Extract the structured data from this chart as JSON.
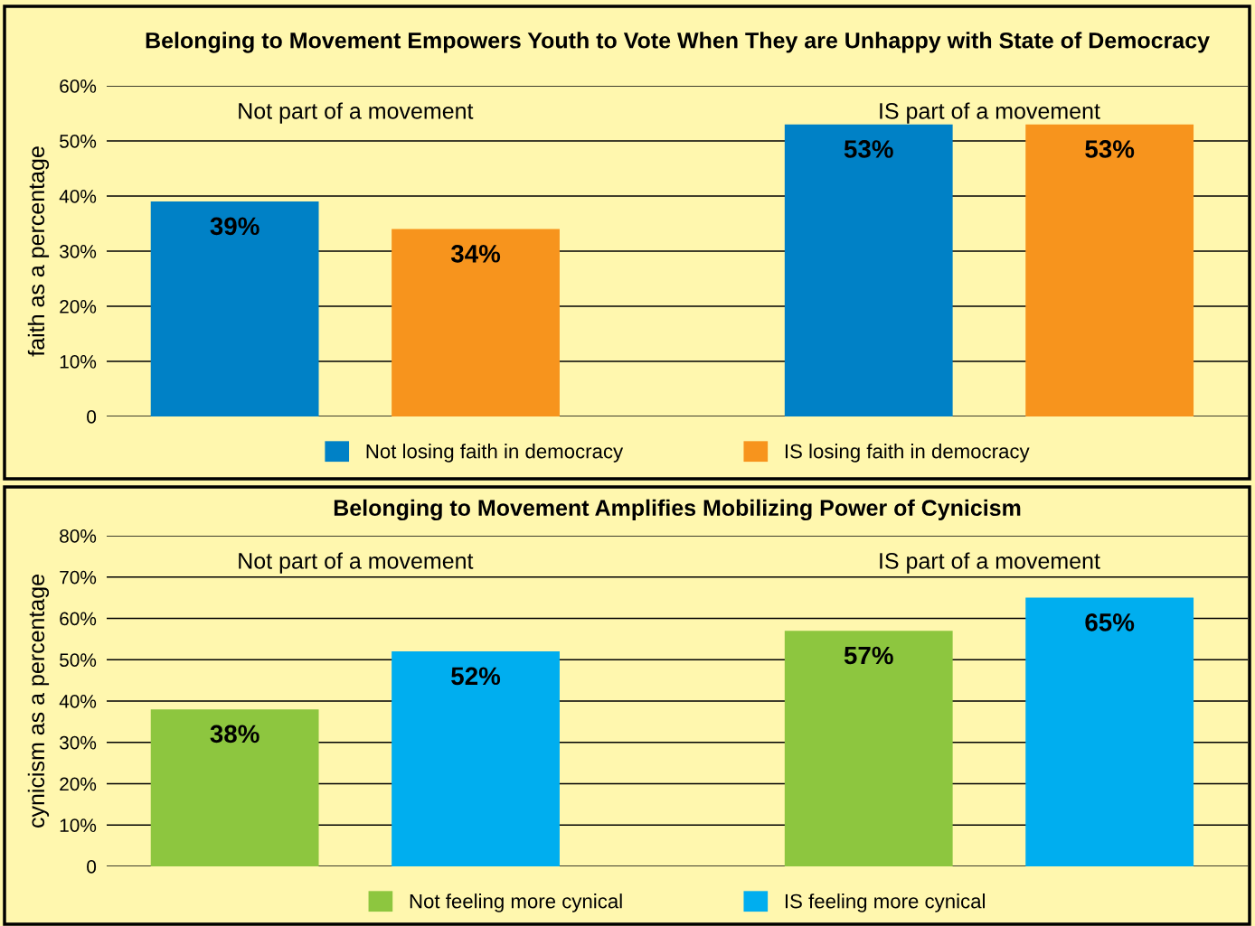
{
  "chart_data": [
    {
      "type": "bar",
      "title": "Belonging to Movement Empowers Youth to Vote When They are Unhappy with State of Democracy",
      "ylabel": "faith as a percentage",
      "categories": [
        "Not part of a movement",
        "IS part of a movement"
      ],
      "series": [
        {
          "name": "Not losing faith in democracy",
          "color": "#0081c6",
          "values": [
            39,
            53
          ],
          "value_labels": [
            "39%",
            "53%"
          ]
        },
        {
          "name": "IS losing faith in democracy",
          "color": "#f7941d",
          "values": [
            34,
            53
          ],
          "value_labels": [
            "34%",
            "53%"
          ]
        }
      ],
      "ylim": [
        0,
        60
      ],
      "yticks": [
        0,
        {
          "value": 10,
          "label": "10%"
        },
        {
          "value": 20,
          "label": "20%"
        },
        {
          "value": 30,
          "label": "30%"
        },
        {
          "value": 40,
          "label": "40%"
        },
        {
          "value": 50,
          "label": "50%"
        },
        {
          "value": 60,
          "label": "60%"
        }
      ],
      "grid": "y",
      "legend": "bottom"
    },
    {
      "type": "bar",
      "title": "Belonging to Movement Amplifies Mobilizing Power of Cynicism",
      "ylabel": "cynicism as a percentage",
      "categories": [
        "Not part of a movement",
        "IS part of a movement"
      ],
      "series": [
        {
          "name": "Not feeling more cynical",
          "color": "#8dc63f",
          "values": [
            38,
            57
          ],
          "value_labels": [
            "38%",
            "57%"
          ]
        },
        {
          "name": "IS feeling more cynical",
          "color": "#00aeef",
          "values": [
            52,
            65
          ],
          "value_labels": [
            "52%",
            "65%"
          ]
        }
      ],
      "ylim": [
        0,
        80
      ],
      "yticks": [
        0,
        {
          "value": 10,
          "label": "10%"
        },
        {
          "value": 20,
          "label": "20%"
        },
        {
          "value": 30,
          "label": "30%"
        },
        {
          "value": 40,
          "label": "40%"
        },
        {
          "value": 50,
          "label": "50%"
        },
        {
          "value": 60,
          "label": "60%"
        },
        {
          "value": 70,
          "label": "70%"
        },
        {
          "value": 80,
          "label": "80%"
        }
      ],
      "grid": "y",
      "legend": "bottom"
    }
  ]
}
